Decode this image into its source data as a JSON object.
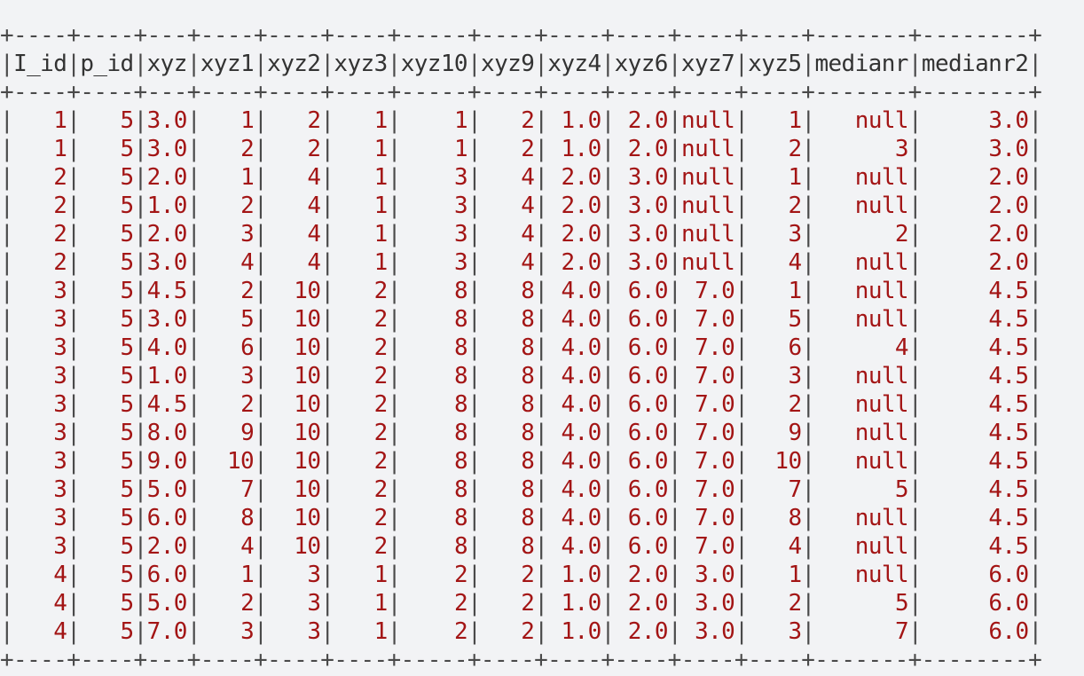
{
  "table": {
    "columns": [
      "I_id",
      "p_id",
      "xyz",
      "xyz1",
      "xyz2",
      "xyz3",
      "xyz10",
      "xyz9",
      "xyz4",
      "xyz6",
      "xyz7",
      "xyz5",
      "medianr",
      "medianr2"
    ],
    "rows": [
      [
        "1",
        "5",
        "3.0",
        "1",
        "2",
        "1",
        "1",
        "2",
        "1.0",
        "2.0",
        "null",
        "1",
        "null",
        "3.0"
      ],
      [
        "1",
        "5",
        "3.0",
        "2",
        "2",
        "1",
        "1",
        "2",
        "1.0",
        "2.0",
        "null",
        "2",
        "3",
        "3.0"
      ],
      [
        "2",
        "5",
        "2.0",
        "1",
        "4",
        "1",
        "3",
        "4",
        "2.0",
        "3.0",
        "null",
        "1",
        "null",
        "2.0"
      ],
      [
        "2",
        "5",
        "1.0",
        "2",
        "4",
        "1",
        "3",
        "4",
        "2.0",
        "3.0",
        "null",
        "2",
        "null",
        "2.0"
      ],
      [
        "2",
        "5",
        "2.0",
        "3",
        "4",
        "1",
        "3",
        "4",
        "2.0",
        "3.0",
        "null",
        "3",
        "2",
        "2.0"
      ],
      [
        "2",
        "5",
        "3.0",
        "4",
        "4",
        "1",
        "3",
        "4",
        "2.0",
        "3.0",
        "null",
        "4",
        "null",
        "2.0"
      ],
      [
        "3",
        "5",
        "4.5",
        "2",
        "10",
        "2",
        "8",
        "8",
        "4.0",
        "6.0",
        "7.0",
        "1",
        "null",
        "4.5"
      ],
      [
        "3",
        "5",
        "3.0",
        "5",
        "10",
        "2",
        "8",
        "8",
        "4.0",
        "6.0",
        "7.0",
        "5",
        "null",
        "4.5"
      ],
      [
        "3",
        "5",
        "4.0",
        "6",
        "10",
        "2",
        "8",
        "8",
        "4.0",
        "6.0",
        "7.0",
        "6",
        "4",
        "4.5"
      ],
      [
        "3",
        "5",
        "1.0",
        "3",
        "10",
        "2",
        "8",
        "8",
        "4.0",
        "6.0",
        "7.0",
        "3",
        "null",
        "4.5"
      ],
      [
        "3",
        "5",
        "4.5",
        "2",
        "10",
        "2",
        "8",
        "8",
        "4.0",
        "6.0",
        "7.0",
        "2",
        "null",
        "4.5"
      ],
      [
        "3",
        "5",
        "8.0",
        "9",
        "10",
        "2",
        "8",
        "8",
        "4.0",
        "6.0",
        "7.0",
        "9",
        "null",
        "4.5"
      ],
      [
        "3",
        "5",
        "9.0",
        "10",
        "10",
        "2",
        "8",
        "8",
        "4.0",
        "6.0",
        "7.0",
        "10",
        "null",
        "4.5"
      ],
      [
        "3",
        "5",
        "5.0",
        "7",
        "10",
        "2",
        "8",
        "8",
        "4.0",
        "6.0",
        "7.0",
        "7",
        "5",
        "4.5"
      ],
      [
        "3",
        "5",
        "6.0",
        "8",
        "10",
        "2",
        "8",
        "8",
        "4.0",
        "6.0",
        "7.0",
        "8",
        "null",
        "4.5"
      ],
      [
        "3",
        "5",
        "2.0",
        "4",
        "10",
        "2",
        "8",
        "8",
        "4.0",
        "6.0",
        "7.0",
        "4",
        "null",
        "4.5"
      ],
      [
        "4",
        "5",
        "6.0",
        "1",
        "3",
        "1",
        "2",
        "2",
        "1.0",
        "2.0",
        "3.0",
        "1",
        "null",
        "6.0"
      ],
      [
        "4",
        "5",
        "5.0",
        "2",
        "3",
        "1",
        "2",
        "2",
        "1.0",
        "2.0",
        "3.0",
        "2",
        "5",
        "6.0"
      ],
      [
        "4",
        "5",
        "7.0",
        "3",
        "3",
        "1",
        "2",
        "2",
        "1.0",
        "2.0",
        "3.0",
        "3",
        "7",
        "6.0"
      ]
    ]
  }
}
